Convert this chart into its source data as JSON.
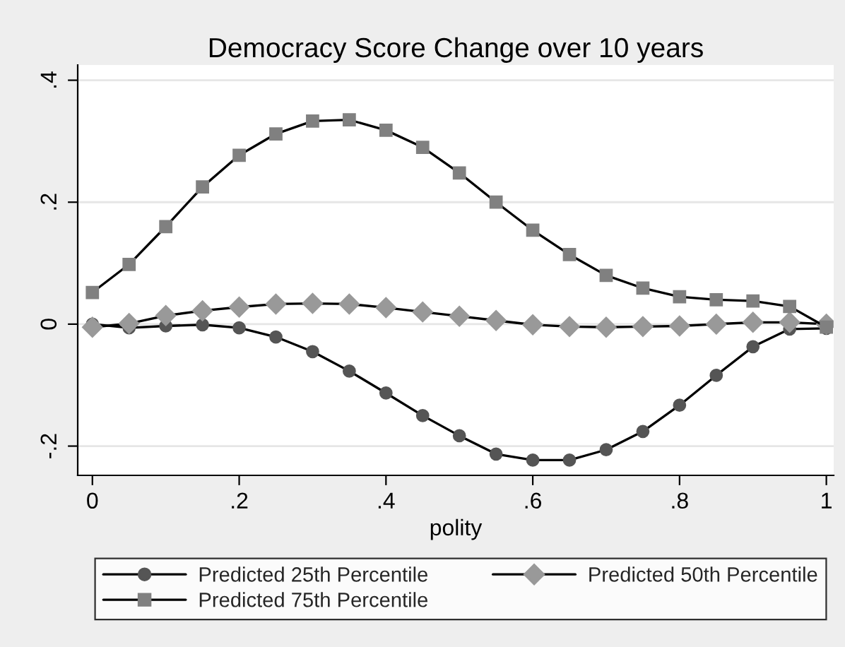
{
  "chart_data": {
    "type": "line",
    "title": "Democracy Score Change over 10 years",
    "xlabel": "polity",
    "x": [
      0,
      0.05,
      0.1,
      0.15,
      0.2,
      0.25,
      0.3,
      0.35,
      0.4,
      0.45,
      0.5,
      0.55,
      0.6,
      0.65,
      0.7,
      0.75,
      0.8,
      0.85,
      0.9,
      0.95,
      1
    ],
    "series": [
      {
        "name": "Predicted 25th Percentile",
        "color": "#555555",
        "marker": "circle",
        "values": [
          0,
          -0.006,
          -0.003,
          -0.001,
          -0.006,
          -0.021,
          -0.045,
          -0.077,
          -0.113,
          -0.15,
          -0.183,
          -0.213,
          -0.223,
          -0.223,
          -0.206,
          -0.176,
          -0.133,
          -0.084,
          -0.037,
          -0.008,
          -0.007
        ]
      },
      {
        "name": "Predicted 50th Percentile",
        "color": "#999999",
        "marker": "diamond",
        "values": [
          -0.005,
          0.001,
          0.014,
          0.022,
          0.028,
          0.033,
          0.034,
          0.033,
          0.027,
          0.02,
          0.013,
          0.006,
          -0.001,
          -0.004,
          -0.005,
          -0.004,
          -0.003,
          0,
          0.003,
          0.003,
          0
        ]
      },
      {
        "name": "Predicted 75th Percentile",
        "color": "#808080",
        "marker": "square",
        "values": [
          0.052,
          0.098,
          0.16,
          0.225,
          0.277,
          0.312,
          0.333,
          0.335,
          0.318,
          0.29,
          0.248,
          0.2,
          0.154,
          0.114,
          0.08,
          0.059,
          0.045,
          0.04,
          0.038,
          0.029,
          -0.005
        ]
      }
    ],
    "xlim": [
      -0.02,
      1.01
    ],
    "ylim": [
      -0.248,
      0.425
    ],
    "xticks": [
      0,
      {
        "value": 0.2,
        "label": ".2"
      },
      {
        "value": 0.4,
        "label": ".4"
      },
      {
        "value": 0.6,
        "label": ".6"
      },
      {
        "value": 0.8,
        "label": ".8"
      },
      1
    ],
    "yticks": [
      {
        "value": -0.2,
        "label": "-.2"
      },
      0,
      {
        "value": 0.2,
        "label": ".2"
      },
      {
        "value": 0.4,
        "label": ".4"
      }
    ],
    "grid": "y",
    "legend": "bottom",
    "line_style": "solid"
  }
}
